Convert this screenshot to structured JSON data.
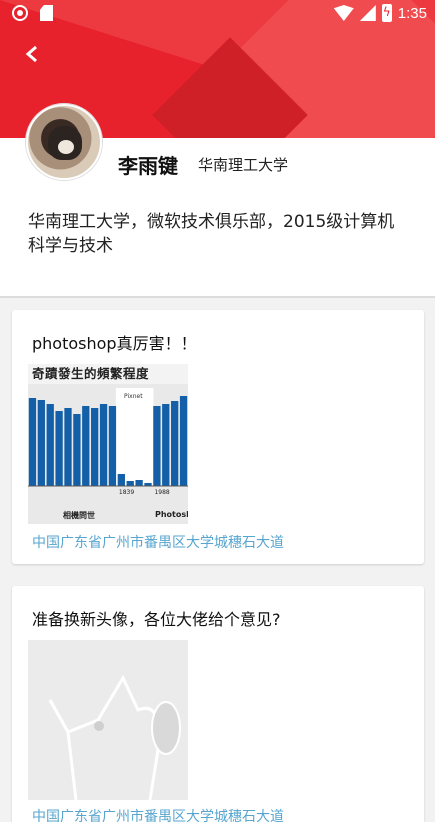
{
  "status_bar": {
    "time": "1:35"
  },
  "profile": {
    "name": "李雨键",
    "school": "华南理工大学",
    "bio": "华南理工大学，微软技术俱乐部，2015级计算机科学与技术"
  },
  "posts": [
    {
      "title": "photoshop真厉害！！",
      "location": "中国广东省广州市番禺区大学城穗石大道",
      "image": {
        "title": "奇蹟發生的頻繁程度",
        "xlabel_left": "相機問世",
        "xlabel_right": "Photoshop",
        "mark_left": "1839",
        "mark_right": "1988",
        "legend": "Pixnet"
      },
      "chart_data": {
        "type": "bar",
        "title": "奇蹟發生的頻繁程度",
        "values": [
          88,
          86,
          82,
          75,
          78,
          72,
          80,
          78,
          82,
          80,
          12,
          5,
          6,
          3,
          80,
          82,
          85,
          90
        ],
        "colors": {
          "bar": "#1460a8",
          "highlight": "#ffffff"
        }
      }
    },
    {
      "title": "准备换新头像，各位大佬给个意见?",
      "location": "中国广东省广州市番禺区大学城穗石大道"
    }
  ],
  "colors": {
    "brand_red": "#e8222c",
    "link_blue": "#58a6cf"
  }
}
